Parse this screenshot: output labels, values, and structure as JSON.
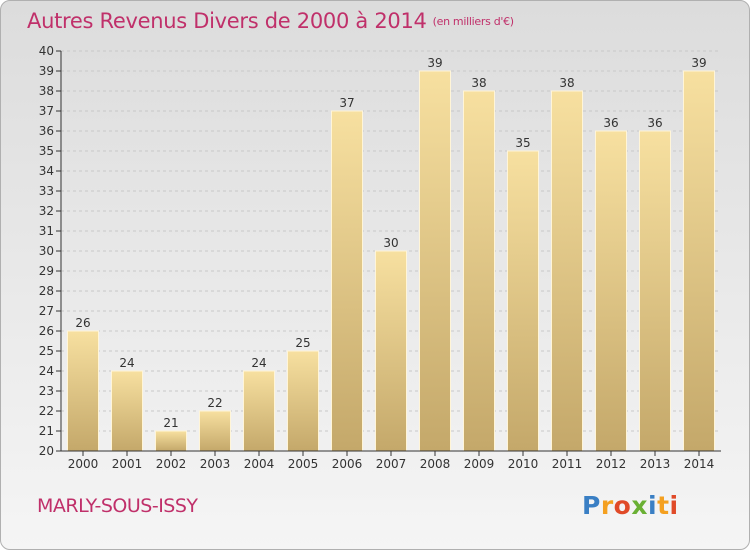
{
  "title": "Autres Revenus Divers de 2000 à 2014",
  "subtitle": "(en milliers d'€)",
  "commune": "MARLY-SOUS-ISSY",
  "logo": {
    "letters": [
      "P",
      "r",
      "o",
      "x",
      "i",
      "t",
      "i"
    ],
    "colors": [
      "#3a7fc4",
      "#f4a020",
      "#e04a28",
      "#6ab034",
      "#3a7fc4",
      "#f4a020",
      "#e04a28"
    ]
  },
  "colors": {
    "title": "#c0306a",
    "bar_light": "#f7e0a0",
    "bar_dark": "#c4a86a",
    "axis": "#333333"
  },
  "chart_data": {
    "type": "bar",
    "categories": [
      "2000",
      "2001",
      "2002",
      "2003",
      "2004",
      "2005",
      "2006",
      "2007",
      "2008",
      "2009",
      "2010",
      "2011",
      "2012",
      "2013",
      "2014"
    ],
    "values": [
      26,
      24,
      21,
      22,
      24,
      25,
      37,
      30,
      39,
      38,
      35,
      38,
      36,
      36,
      39
    ],
    "ylim": [
      20,
      40
    ],
    "yticks": [
      20,
      21,
      22,
      23,
      24,
      25,
      26,
      27,
      28,
      29,
      30,
      31,
      32,
      33,
      34,
      35,
      36,
      37,
      38,
      39,
      40
    ],
    "grid": true,
    "data_labels": true
  }
}
